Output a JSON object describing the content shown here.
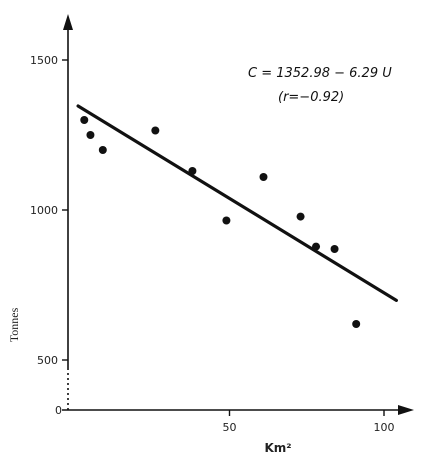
{
  "chart_data": {
    "type": "scatter",
    "title": "",
    "xlabel": "Km²",
    "ylabel": "Tonnes",
    "x_ticks": [
      0,
      50,
      100
    ],
    "y_ticks": [
      500,
      1000,
      1500
    ],
    "origin_label": "0",
    "xlim": [
      -5,
      107
    ],
    "ylim": [
      430,
      1600
    ],
    "y_axis_break": true,
    "grid": false,
    "annotations": [
      "C = 1352.98 − 6.29 U",
      "(r=−0.92)"
    ],
    "points": [
      {
        "x": 3,
        "y": 1300
      },
      {
        "x": 5,
        "y": 1250
      },
      {
        "x": 9,
        "y": 1200
      },
      {
        "x": 26,
        "y": 1265
      },
      {
        "x": 38,
        "y": 1130
      },
      {
        "x": 49,
        "y": 965
      },
      {
        "x": 61,
        "y": 1110
      },
      {
        "x": 73,
        "y": 978
      },
      {
        "x": 78,
        "y": 878
      },
      {
        "x": 84,
        "y": 870
      },
      {
        "x": 91,
        "y": 620
      }
    ],
    "regression": {
      "intercept": 1352.98,
      "slope": -6.29,
      "x_range": [
        1,
        104
      ]
    }
  }
}
